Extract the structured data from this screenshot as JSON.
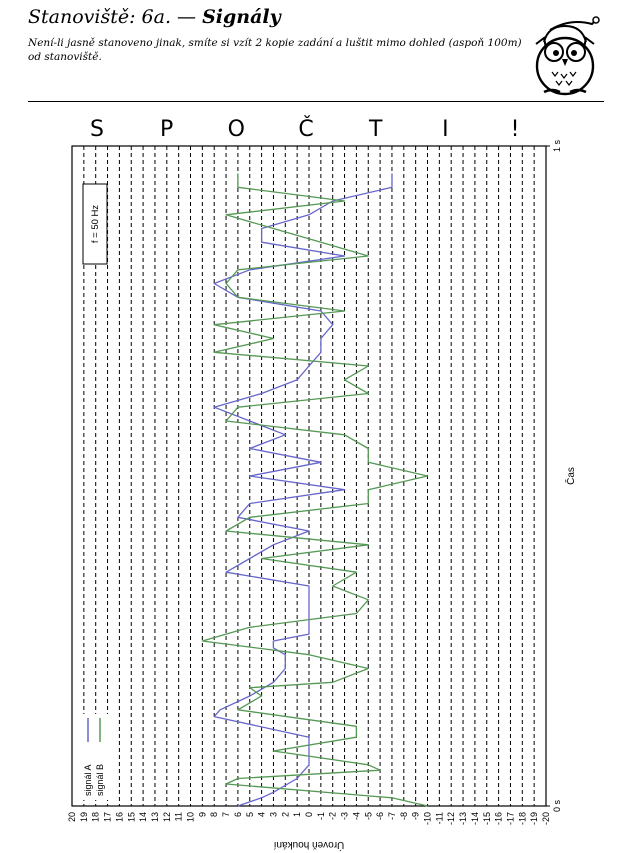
{
  "header": {
    "title_prefix": "Stanoviště: 6a. —",
    "title_name": "Signály",
    "note": "Není-li jasně stanoveno jinak, smíte si vzít 2 kopie zadání a luštit mimo dohled (aspoň 100m) od stanoviště."
  },
  "chart_data": {
    "type": "line",
    "orientation": "rotated-90",
    "title": "",
    "xlabel": "Čas",
    "ylabel": "Úroveň houkání",
    "x_tick_labels": [
      "0 s",
      "1 s"
    ],
    "xlim": [
      0,
      1
    ],
    "ylim": [
      -20,
      20
    ],
    "y_ticks": [
      20,
      19,
      18,
      17,
      16,
      15,
      14,
      13,
      12,
      11,
      10,
      9,
      8,
      7,
      6,
      5,
      4,
      3,
      2,
      1,
      0,
      -1,
      -2,
      -3,
      -4,
      -5,
      -6,
      -7,
      -8,
      -9,
      -10,
      -11,
      -12,
      -13,
      -14,
      -15,
      -16,
      -17,
      -18,
      -19,
      -20
    ],
    "grid": "dashed lines at each level",
    "legend": "bottom-left",
    "annotation": "f = 50 Hz",
    "letters": [
      "S",
      "P",
      "O",
      "Č",
      "T",
      "I",
      "!"
    ],
    "series": [
      {
        "name": "signál A",
        "color": "#6666cc",
        "x": [
          0,
          0.0125,
          0.0208,
          0.0417,
          0.0625,
          0.0729,
          0.1042,
          0.1354,
          0.1458,
          0.1667,
          0.1875,
          0.2083,
          0.2292,
          0.2396,
          0.25,
          0.2604,
          0.2708,
          0.2917,
          0.3125,
          0.3333,
          0.3542,
          0.375,
          0.3958,
          0.4167,
          0.4375,
          0.4583,
          0.4792,
          0.5,
          0.5208,
          0.5417,
          0.5625,
          0.5833,
          0.6042,
          0.625,
          0.6458,
          0.6667,
          0.6875,
          0.7083,
          0.7292,
          0.75,
          0.7708,
          0.7917,
          0.8125,
          0.8333,
          0.8542,
          0.875,
          0.8958,
          0.9167,
          0.9375,
          0.9583
        ],
        "y": [
          6,
          4,
          3,
          1,
          0,
          0,
          0,
          8,
          7.5,
          5,
          3,
          2,
          2,
          3,
          3,
          0,
          0,
          0,
          0,
          0,
          7,
          5,
          3,
          0,
          6,
          5,
          -3,
          5,
          -1,
          5,
          2,
          5,
          8,
          4,
          1,
          0,
          -1,
          -1,
          -2,
          -1,
          6,
          8,
          5,
          -3,
          4,
          4,
          0,
          -2,
          -7,
          -7
        ]
      },
      {
        "name": "signál B",
        "color": "#559955",
        "x": [
          0,
          0.0083,
          0.0125,
          0.0333,
          0.0417,
          0.0542,
          0.0625,
          0.0833,
          0.1042,
          0.1208,
          0.1458,
          0.1667,
          0.1792,
          0.1875,
          0.2083,
          0.2292,
          0.25,
          0.2708,
          0.2917,
          0.3125,
          0.3333,
          0.3542,
          0.375,
          0.3958,
          0.4167,
          0.4375,
          0.4583,
          0.4792,
          0.5,
          0.5208,
          0.5417,
          0.5625,
          0.5833,
          0.6042,
          0.625,
          0.6458,
          0.6667,
          0.6875,
          0.7083,
          0.7292,
          0.75,
          0.7708,
          0.7917,
          0.8125,
          0.8333,
          0.8542,
          0.875,
          0.8958,
          0.9167,
          0.9375,
          0.9583
        ],
        "y": [
          -10,
          -8,
          -7,
          7,
          6,
          -6,
          -5,
          3,
          -4,
          -4,
          6,
          4,
          5,
          -2,
          -5,
          0,
          9,
          5,
          -4,
          -5,
          -2,
          -4,
          4,
          -5,
          7,
          5,
          -5,
          -5,
          -10,
          -5,
          -5,
          -3,
          7,
          6,
          -5,
          -3,
          -5,
          8,
          3,
          8,
          -3,
          6,
          7,
          6,
          -5,
          -1,
          3,
          7,
          -3,
          6,
          6
        ]
      }
    ]
  }
}
